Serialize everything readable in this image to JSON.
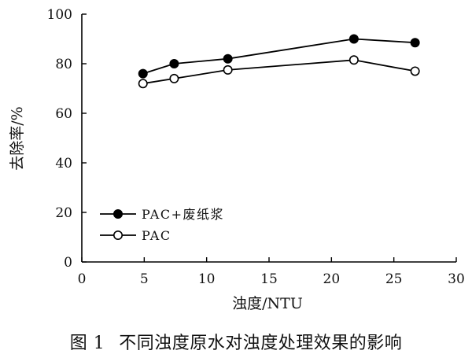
{
  "chart_data": {
    "type": "line",
    "title": "",
    "xlabel": "浊度/NTU",
    "ylabel": "去除率/%",
    "xlim": [
      0,
      30
    ],
    "ylim": [
      0,
      100
    ],
    "xticks": [
      0,
      5,
      10,
      15,
      20,
      25,
      30
    ],
    "yticks": [
      0,
      20,
      40,
      60,
      80,
      100
    ],
    "xtick_labels": [
      "0",
      "5",
      "10",
      "15",
      "20",
      "25",
      "30"
    ],
    "ytick_labels": [
      "0",
      "20",
      "40",
      "60",
      "80",
      "100"
    ],
    "grid": false,
    "legend_position": "lower-left",
    "series": [
      {
        "name": "PAC+废纸浆",
        "marker": "filled-circle",
        "color": "#000000",
        "x": [
          4.9,
          7.4,
          11.7,
          21.8,
          26.7
        ],
        "y": [
          76,
          80,
          82,
          90,
          88.5
        ]
      },
      {
        "name": "PAC",
        "marker": "open-circle",
        "color": "#000000",
        "x": [
          4.9,
          7.4,
          11.7,
          21.8,
          26.7
        ],
        "y": [
          72,
          74,
          77.5,
          81.5,
          77
        ]
      }
    ]
  },
  "caption": {
    "number": "图 1",
    "text": "不同浊度原水对浊度处理效果的影响"
  }
}
